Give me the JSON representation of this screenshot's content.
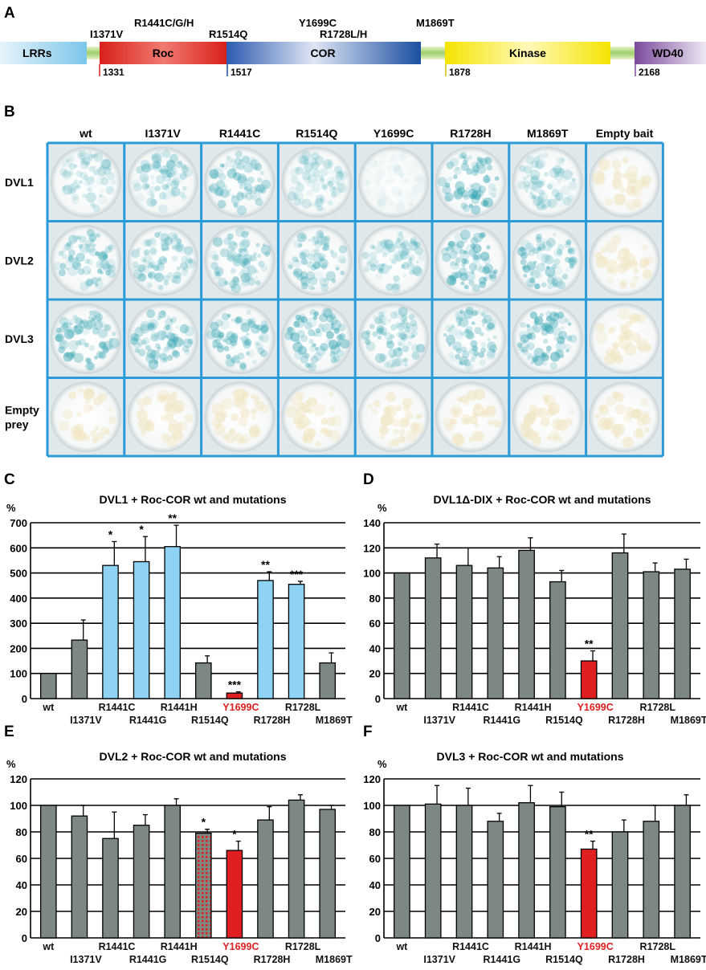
{
  "panel_a": {
    "letter": "A",
    "domains": [
      {
        "name": "LRRs",
        "start": "",
        "color": "#7cc6ea"
      },
      {
        "name": "Roc",
        "start": "1331",
        "color": "#d9201c"
      },
      {
        "name": "COR",
        "start": "1517",
        "color": "#1c4fa2"
      },
      {
        "name": "Kinase",
        "start": "1878",
        "color": "#f5e400"
      },
      {
        "name": "WD40",
        "start": "2168",
        "color": "#7a4a9c"
      }
    ],
    "mutations": [
      "I1371V",
      "R1441C/G/H",
      "R1514Q",
      "Y1699C",
      "R1728L/H",
      "M1869T"
    ]
  },
  "panel_b": {
    "letter": "B",
    "columns": [
      "wt",
      "I1371V",
      "R1441C",
      "R1514Q",
      "Y1699C",
      "R1728H",
      "M1869T",
      "Empty bait"
    ],
    "rows": [
      "DVL1",
      "DVL2",
      "DVL3",
      "Empty\nprey"
    ],
    "row_labels_lines": [
      [
        "DVL1"
      ],
      [
        "DVL2"
      ],
      [
        "DVL3"
      ],
      [
        "Empty",
        "prey"
      ]
    ],
    "intensity": [
      [
        0.35,
        0.45,
        0.55,
        0.35,
        0.08,
        0.65,
        0.35,
        0.0
      ],
      [
        0.55,
        0.55,
        0.55,
        0.55,
        0.45,
        0.7,
        0.6,
        0.0
      ],
      [
        0.65,
        0.6,
        0.65,
        0.75,
        0.55,
        0.6,
        0.75,
        0.0
      ],
      [
        0.0,
        0.0,
        0.0,
        0.0,
        0.0,
        0.0,
        0.0,
        0.0
      ]
    ],
    "colors": {
      "border": "#2a9bd8",
      "stain": "#3aa7b5",
      "empty": "#f1e6c4"
    }
  },
  "chart_data": [
    {
      "panel": "C",
      "type": "bar",
      "title": "DVL1 + Roc-COR wt and mutations",
      "ylabel": "%",
      "ylim": [
        0,
        700
      ],
      "yticks": [
        0,
        100,
        200,
        300,
        400,
        500,
        600,
        700
      ],
      "categories": [
        "wt",
        "I1371V",
        "R1441C",
        "R1441G",
        "R1441H",
        "R1514Q",
        "Y1699C",
        "R1728H",
        "R1728L",
        "M1869T"
      ],
      "values": [
        100,
        233,
        530,
        545,
        605,
        142,
        22,
        470,
        455,
        142
      ],
      "errors": [
        0,
        80,
        95,
        100,
        85,
        28,
        5,
        35,
        12,
        40
      ],
      "significance": [
        "",
        "",
        "*",
        "*",
        "**",
        "",
        "***",
        "**",
        "***",
        ""
      ],
      "bar_colors": [
        "#7d8883",
        "#7d8883",
        "#8fd3f4",
        "#8fd3f4",
        "#8fd3f4",
        "#7d8883",
        "#e02020",
        "#8fd3f4",
        "#8fd3f4",
        "#7d8883"
      ],
      "patterns": [
        "solid",
        "solid",
        "solid",
        "solid",
        "solid",
        "solid",
        "solid",
        "solid",
        "solid",
        "solid"
      ],
      "highlight": "Y1699C"
    },
    {
      "panel": "D",
      "type": "bar",
      "title": "DVL1Δ-DIX + Roc-COR wt and mutations",
      "ylabel": "%",
      "ylim": [
        0,
        140
      ],
      "yticks": [
        0,
        20,
        40,
        60,
        80,
        100,
        120,
        140
      ],
      "categories": [
        "wt",
        "I1371V",
        "R1441C",
        "R1441G",
        "R1441H",
        "R1514Q",
        "Y1699C",
        "R1728H",
        "R1728L",
        "M1869T"
      ],
      "values": [
        100,
        112,
        106,
        104,
        118,
        93,
        30,
        116,
        101,
        103
      ],
      "errors": [
        0,
        11,
        14,
        9,
        10,
        9,
        8,
        15,
        7,
        8
      ],
      "significance": [
        "",
        "",
        "",
        "",
        "",
        "",
        "**",
        "",
        "",
        ""
      ],
      "bar_colors": [
        "#7d8883",
        "#7d8883",
        "#7d8883",
        "#7d8883",
        "#7d8883",
        "#7d8883",
        "#e02020",
        "#7d8883",
        "#7d8883",
        "#7d8883"
      ],
      "patterns": [
        "solid",
        "solid",
        "solid",
        "solid",
        "solid",
        "solid",
        "solid",
        "solid",
        "solid",
        "solid"
      ],
      "highlight": "Y1699C"
    },
    {
      "panel": "E",
      "type": "bar",
      "title": "DVL2 + Roc-COR wt and mutations",
      "ylabel": "%",
      "ylim": [
        0,
        120
      ],
      "yticks": [
        0,
        20,
        40,
        60,
        80,
        100,
        120
      ],
      "categories": [
        "wt",
        "I1371V",
        "R1441C",
        "R1441G",
        "R1441H",
        "R1514Q",
        "Y1699C",
        "R1728H",
        "R1728L",
        "M1869T"
      ],
      "values": [
        100,
        92,
        75,
        85,
        100,
        79,
        66,
        89,
        104,
        97
      ],
      "errors": [
        0,
        8,
        20,
        8,
        5,
        3,
        7,
        10,
        4,
        3
      ],
      "significance": [
        "",
        "",
        "",
        "",
        "",
        "*",
        "*",
        "",
        "",
        ""
      ],
      "bar_colors": [
        "#7d8883",
        "#7d8883",
        "#7d8883",
        "#7d8883",
        "#7d8883",
        "#7d8883",
        "#e02020",
        "#7d8883",
        "#7d8883",
        "#7d8883"
      ],
      "patterns": [
        "solid",
        "solid",
        "solid",
        "solid",
        "solid",
        "dotted-red",
        "solid",
        "solid",
        "solid",
        "solid"
      ],
      "highlight": "Y1699C"
    },
    {
      "panel": "F",
      "type": "bar",
      "title": "DVL3 + Roc-COR wt and mutations",
      "ylabel": "%",
      "ylim": [
        0,
        120
      ],
      "yticks": [
        0,
        20,
        40,
        60,
        80,
        100,
        120
      ],
      "categories": [
        "wt",
        "I1371V",
        "R1441C",
        "R1441G",
        "R1441H",
        "R1514Q",
        "Y1699C",
        "R1728H",
        "R1728L",
        "M1869T"
      ],
      "values": [
        100,
        101,
        100,
        88,
        102,
        99,
        67,
        80,
        88,
        100
      ],
      "errors": [
        0,
        14,
        13,
        6,
        13,
        11,
        6,
        9,
        12,
        8
      ],
      "significance": [
        "",
        "",
        "",
        "",
        "",
        "",
        "**",
        "",
        "",
        ""
      ],
      "bar_colors": [
        "#7d8883",
        "#7d8883",
        "#7d8883",
        "#7d8883",
        "#7d8883",
        "#7d8883",
        "#e02020",
        "#7d8883",
        "#7d8883",
        "#7d8883"
      ],
      "patterns": [
        "solid",
        "solid",
        "solid",
        "solid",
        "solid",
        "solid",
        "solid",
        "solid",
        "solid",
        "solid"
      ],
      "highlight": "Y1699C"
    }
  ]
}
